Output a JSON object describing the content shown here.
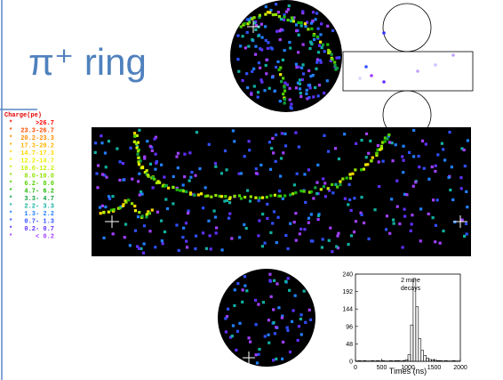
{
  "title": "π⁺ ring",
  "legend": {
    "title": "Charge(pe)",
    "marker": "*",
    "items": [
      {
        "label": ">26.7",
        "color": "#ff0000"
      },
      {
        "label": "23.3-26.7",
        "color": "#ff4a00"
      },
      {
        "label": "20.2-23.3",
        "color": "#ff8c00"
      },
      {
        "label": "17.3-20.2",
        "color": "#ffb400"
      },
      {
        "label": "14.7-17.3",
        "color": "#ffd800"
      },
      {
        "label": "12.2-14.7",
        "color": "#f0f000"
      },
      {
        "label": "10.0-12.2",
        "color": "#c8f000"
      },
      {
        "label": "8.0-10.0",
        "color": "#90e000"
      },
      {
        "label": "6.2- 8.0",
        "color": "#50d000"
      },
      {
        "label": "4.7- 6.2",
        "color": "#20b800"
      },
      {
        "label": "3.3- 4.7",
        "color": "#10a040"
      },
      {
        "label": "2.2- 3.3",
        "color": "#10b0a0"
      },
      {
        "label": "1.3- 2.2",
        "color": "#2080ff"
      },
      {
        "label": "0.7- 1.3",
        "color": "#3050ff"
      },
      {
        "label": "0.2- 0.7",
        "color": "#6030ff"
      },
      {
        "label": "< 0.2",
        "color": "#a040ff"
      }
    ]
  },
  "histogram": {
    "type": "histogram",
    "annotation": [
      "2 mu-e",
      "decays"
    ],
    "xlabel": "Times (ns)",
    "bins": [
      0,
      50,
      100,
      150,
      200,
      250,
      300,
      350,
      400,
      450,
      500,
      550,
      600,
      650,
      700,
      750,
      800,
      850,
      900,
      950,
      1000,
      1050,
      1100,
      1150,
      1200,
      1250,
      1300,
      1350,
      1400,
      1450,
      1500,
      1550,
      1600,
      1650,
      1700,
      1750,
      1800,
      1850,
      1900,
      1950,
      2000
    ],
    "values": [
      1,
      2,
      1,
      2,
      1,
      1,
      2,
      1,
      2,
      1,
      2,
      1,
      1,
      2,
      1,
      2,
      2,
      1,
      2,
      4,
      18,
      100,
      228,
      150,
      62,
      30,
      16,
      9,
      5,
      4,
      3,
      2,
      2,
      1,
      2,
      1,
      1,
      2,
      1,
      1
    ],
    "xlim": [
      0,
      2000
    ],
    "ylim": [
      0,
      240
    ],
    "xticks": [
      0,
      500,
      1000,
      1500,
      2000
    ],
    "yticks": [
      0,
      48,
      96,
      144,
      192,
      240
    ]
  }
}
